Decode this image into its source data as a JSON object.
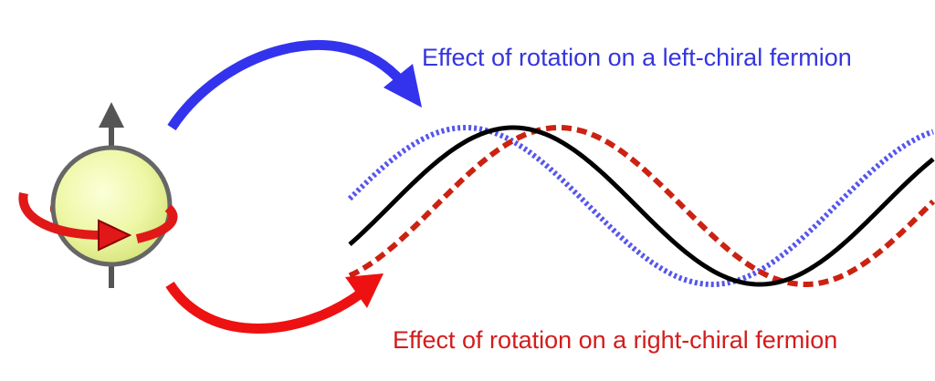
{
  "labels": {
    "left": "Effect of rotation on a left-chiral fermion",
    "right": "Effect of rotation on a right-chiral fermion"
  }
}
